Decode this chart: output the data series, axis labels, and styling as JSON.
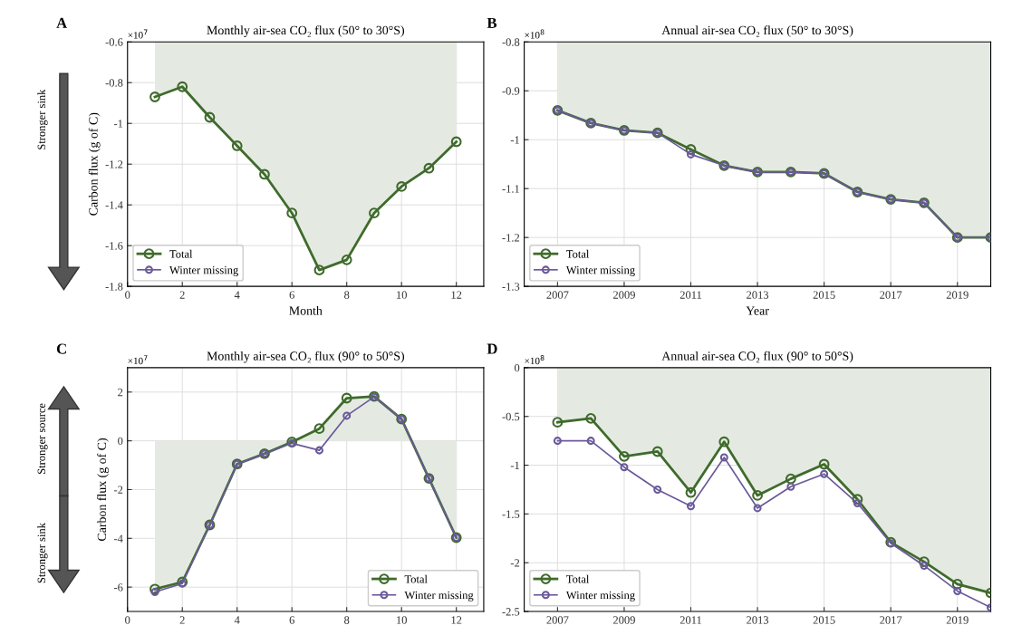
{
  "chart_data": [
    {
      "type": "line",
      "title": "Monthly air-sea CO₂ flux (50° to 30°S)",
      "xlabel": "Month",
      "ylabel": "Carbon flux (g of C)",
      "annotations": [
        "A",
        "×10$^{7}$",
        "Stronger sink"
      ],
      "x": [
        1,
        2,
        3,
        4,
        5,
        6,
        7,
        8,
        9,
        10,
        11,
        12
      ],
      "xlim": [
        0,
        13
      ],
      "xticks": [
        0,
        2,
        4,
        6,
        8,
        10,
        12
      ],
      "ylim": [
        -1.8,
        -0.6
      ],
      "yticks": [
        -1.8,
        -1.6,
        -1.4,
        -1.2,
        -1,
        -0.8,
        -0.6
      ],
      "grid": true,
      "legend": "bottom left",
      "marker": "circle",
      "series": [
        {
          "type": "area",
          "name": "Total",
          "color": "#3f6b2c",
          "values": [
            -0.87,
            -0.82,
            -0.97,
            -1.11,
            -1.25,
            -1.44,
            -1.72,
            -1.67,
            -1.44,
            -1.31,
            -1.22,
            -1.09
          ]
        },
        {
          "name": "Winter missing",
          "color": "#6a5a9a",
          "values": [
            null,
            null,
            null,
            null,
            null,
            null,
            null,
            null,
            null,
            null,
            null,
            null
          ]
        }
      ]
    },
    {
      "type": "line",
      "title": "Annual air-sea CO₂ flux (50° to 30°S)",
      "xlabel": "Year",
      "annotations": [
        "B",
        "×10$^{8}$"
      ],
      "x": [
        2007,
        2008,
        2009,
        2010,
        2011,
        2012,
        2013,
        2014,
        2015,
        2016,
        2017,
        2018,
        2019,
        2020
      ],
      "xlim": [
        2006,
        2020
      ],
      "xticks": [
        2007,
        2009,
        2011,
        2013,
        2015,
        2017,
        2019
      ],
      "ylim": [
        -1.3,
        -0.8
      ],
      "yticks": [
        -1.3,
        -1.2,
        -1.1,
        -1,
        -0.9,
        -0.8
      ],
      "grid": true,
      "legend": "bottom left",
      "marker": "circle",
      "series": [
        {
          "type": "area",
          "name": "Total",
          "color": "#3f6b2c",
          "values": [
            -0.94,
            -0.966,
            -0.981,
            -0.986,
            -1.02,
            -1.053,
            -1.066,
            -1.066,
            -1.069,
            -1.107,
            -1.122,
            -1.129,
            -1.2,
            -1.2
          ]
        },
        {
          "name": "Winter missing",
          "color": "#6a5a9a",
          "values": [
            -0.94,
            -0.966,
            -0.981,
            -0.986,
            -1.03,
            -1.053,
            -1.066,
            -1.066,
            -1.069,
            -1.107,
            -1.122,
            -1.129,
            -1.2,
            -1.2
          ]
        }
      ]
    },
    {
      "type": "line",
      "title": "Monthly air-sea CO₂ flux (90° to 50°S)",
      "ylabel": "Carbon flux (g of C)",
      "annotations": [
        "C",
        "×10$^{7}$",
        "Stronger source",
        "Stronger sink"
      ],
      "x": [
        1,
        2,
        3,
        4,
        5,
        6,
        7,
        8,
        9,
        10,
        11,
        12
      ],
      "xlim": [
        0,
        13
      ],
      "xticks": [
        0,
        2,
        4,
        6,
        8,
        10,
        12
      ],
      "ylim": [
        -7,
        3
      ],
      "yticks": [
        -6,
        -4,
        -2,
        0,
        2
      ],
      "grid": true,
      "legend": "bottom right",
      "marker": "circle",
      "series": [
        {
          "type": "area",
          "name": "Total",
          "color": "#3f6b2c",
          "values": [
            -6.08,
            -5.79,
            -3.45,
            -0.95,
            -0.53,
            -0.05,
            0.5,
            1.75,
            1.82,
            0.89,
            -1.54,
            -3.97
          ]
        },
        {
          "name": "Winter missing",
          "color": "#6a5a9a",
          "values": [
            -6.2,
            -5.85,
            -3.45,
            -0.95,
            -0.53,
            -0.1,
            -0.39,
            1.03,
            1.8,
            0.89,
            -1.54,
            -3.97
          ]
        }
      ]
    },
    {
      "type": "line",
      "title": "Annual air-sea CO₂ flux (90° to 50°S)",
      "annotations": [
        "D",
        "×10$^{8}$"
      ],
      "x": [
        2007,
        2008,
        2009,
        2010,
        2011,
        2012,
        2013,
        2014,
        2015,
        2016,
        2017,
        2018,
        2019,
        2020
      ],
      "xlim": [
        2006,
        2020
      ],
      "xticks": [
        2007,
        2009,
        2011,
        2013,
        2015,
        2017,
        2019
      ],
      "ylim": [
        -2.5,
        0
      ],
      "yticks": [
        -2.5,
        -2,
        -1.5,
        -1,
        -0.5,
        0
      ],
      "grid": true,
      "legend": "bottom left",
      "marker": "circle",
      "series": [
        {
          "type": "area",
          "name": "Total",
          "color": "#3f6b2c",
          "values": [
            -0.56,
            -0.52,
            -0.91,
            -0.86,
            -1.28,
            -0.76,
            -1.31,
            -1.14,
            -0.99,
            -1.35,
            -1.79,
            -1.99,
            -2.22,
            -2.31
          ]
        },
        {
          "name": "Winter missing",
          "color": "#6a5a9a",
          "values": [
            -0.75,
            -0.75,
            -1.02,
            -1.25,
            -1.42,
            -0.92,
            -1.44,
            -1.22,
            -1.09,
            -1.39,
            -1.8,
            -2.03,
            -2.29,
            -2.46
          ]
        }
      ]
    }
  ]
}
